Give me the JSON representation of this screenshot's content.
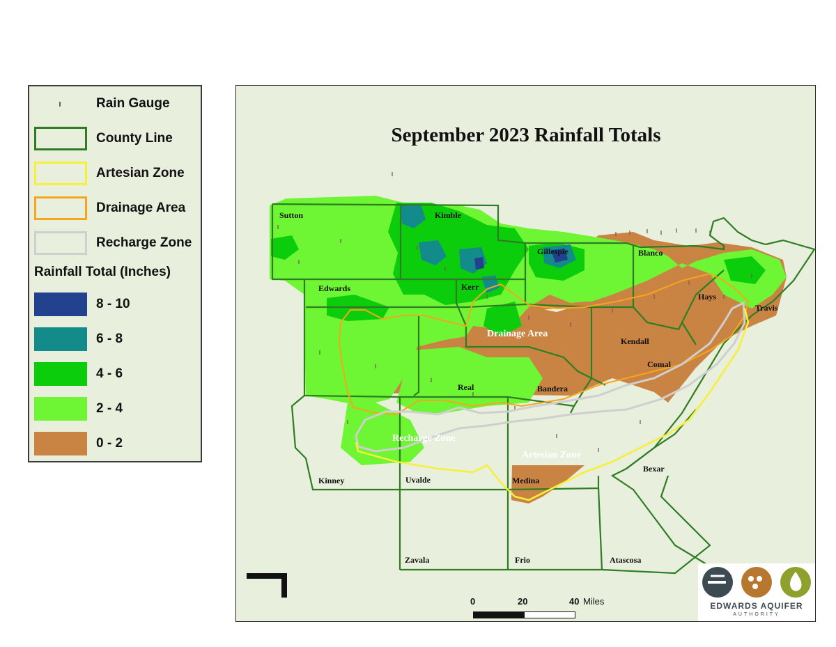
{
  "legend": {
    "items": [
      {
        "label": "Rain Gauge",
        "type": "gauge"
      },
      {
        "label": "County Line",
        "type": "outline",
        "color": "#2e7d23"
      },
      {
        "label": "Artesian Zone",
        "type": "outline",
        "color": "#f6f03a"
      },
      {
        "label": "Drainage Area",
        "type": "outline",
        "color": "#f7a51c"
      },
      {
        "label": "Recharge Zone",
        "type": "outline",
        "color": "#cfcfcf"
      }
    ],
    "rainfall_heading": "Rainfall Total (Inches)",
    "rainfall_classes": [
      {
        "label": "8 - 10",
        "color": "#22418f"
      },
      {
        "label": "6 - 8",
        "color": "#138b8a"
      },
      {
        "label": "4 - 6",
        "color": "#0ccd0c"
      },
      {
        "label": "2 - 4",
        "color": "#6ef533"
      },
      {
        "label": "0 - 2",
        "color": "#c98444"
      }
    ]
  },
  "map": {
    "title": "September 2023 Rainfall Totals",
    "counties": [
      "Sutton",
      "Kimble",
      "Gillespie",
      "Blanco",
      "Edwards",
      "Kerr",
      "Hays",
      "Travis",
      "Kendall",
      "Comal",
      "Real",
      "Bandera",
      "Kinney",
      "Uvalde",
      "Medina",
      "Bexar",
      "Zavala",
      "Frio",
      "Atascosa"
    ],
    "zones": {
      "drainage": "Drainage Area",
      "recharge": "Recharge Zone",
      "artesian": "Artesian Zone"
    }
  },
  "scale": {
    "ticks": [
      "0",
      "20",
      "40"
    ],
    "unit": "Miles"
  },
  "logo": {
    "name": "EDWARDS AQUIFER",
    "sub": "AUTHORITY"
  },
  "colors": {
    "background": "#e8efdc",
    "county_line": "#2e7d23"
  }
}
